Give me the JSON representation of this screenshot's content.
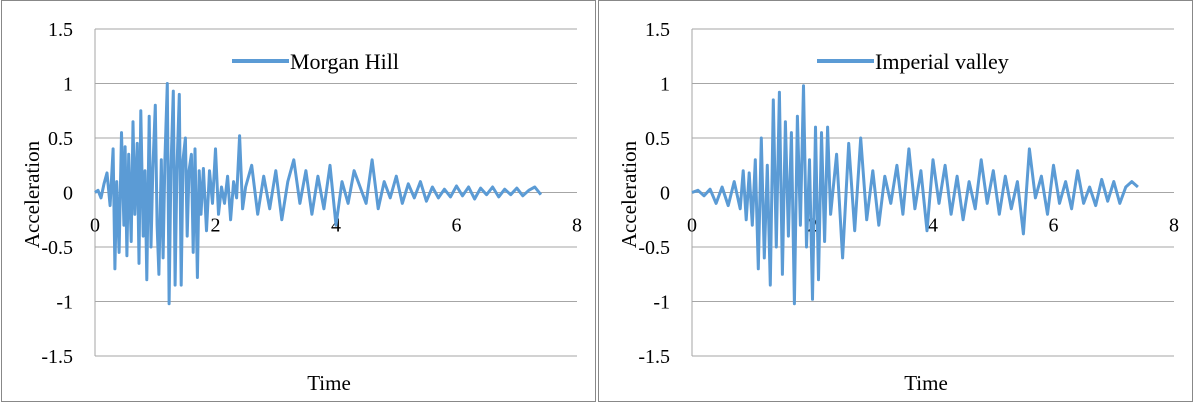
{
  "chart_data": [
    {
      "type": "line",
      "xlabel": "Time",
      "ylabel": "Acceleration",
      "xlim": [
        0,
        8
      ],
      "ylim": [
        -1.5,
        1.5
      ],
      "xticks": [
        "0",
        "2",
        "4",
        "6",
        "8"
      ],
      "yticks": [
        "1.5",
        "1",
        "0.5",
        "0",
        "-0.5",
        "-1",
        "-1.5"
      ],
      "grid": "horizontal",
      "legend": "top-center",
      "series": [
        {
          "name": "Morgan Hill",
          "color": "#5b9bd5",
          "x": [
            0,
            0.05,
            0.1,
            0.15,
            0.2,
            0.25,
            0.3,
            0.33,
            0.36,
            0.4,
            0.44,
            0.48,
            0.5,
            0.53,
            0.56,
            0.6,
            0.63,
            0.66,
            0.7,
            0.73,
            0.76,
            0.8,
            0.83,
            0.86,
            0.9,
            0.93,
            0.96,
            1.0,
            1.03,
            1.06,
            1.1,
            1.13,
            1.16,
            1.2,
            1.23,
            1.26,
            1.3,
            1.33,
            1.36,
            1.4,
            1.43,
            1.46,
            1.5,
            1.53,
            1.56,
            1.6,
            1.63,
            1.66,
            1.7,
            1.73,
            1.76,
            1.8,
            1.85,
            1.9,
            1.95,
            2.0,
            2.05,
            2.1,
            2.15,
            2.2,
            2.25,
            2.3,
            2.35,
            2.4,
            2.45,
            2.5,
            2.6,
            2.7,
            2.8,
            2.9,
            3.0,
            3.1,
            3.2,
            3.3,
            3.4,
            3.5,
            3.6,
            3.7,
            3.8,
            3.9,
            4.0,
            4.1,
            4.2,
            4.3,
            4.4,
            4.5,
            4.6,
            4.7,
            4.8,
            4.9,
            5.0,
            5.1,
            5.2,
            5.3,
            5.4,
            5.5,
            5.6,
            5.7,
            5.8,
            5.9,
            6.0,
            6.1,
            6.2,
            6.3,
            6.4,
            6.5,
            6.6,
            6.7,
            6.8,
            6.9,
            7.0,
            7.1,
            7.2,
            7.3,
            7.4
          ],
          "values": [
            0,
            0.02,
            -0.05,
            0.08,
            0.18,
            -0.12,
            0.4,
            -0.7,
            0.1,
            -0.55,
            0.55,
            -0.3,
            0.42,
            -0.58,
            0.35,
            -0.45,
            0.65,
            -0.2,
            0.45,
            -0.65,
            0.75,
            -0.4,
            0.2,
            -0.8,
            0.7,
            -0.5,
            0.2,
            0.8,
            -0.3,
            -0.75,
            0.3,
            -0.6,
            0.3,
            1.0,
            -1.02,
            0.2,
            0.93,
            -0.85,
            0.2,
            0.9,
            -0.85,
            0.3,
            0.5,
            -0.4,
            0.2,
            0.35,
            -0.55,
            0.4,
            -0.78,
            0.2,
            -0.2,
            0.22,
            -0.35,
            0.2,
            -0.1,
            0.4,
            -0.2,
            0.05,
            -0.1,
            0.15,
            -0.25,
            0.1,
            -0.05,
            0.52,
            -0.15,
            0.05,
            0.25,
            -0.2,
            0.15,
            -0.15,
            0.2,
            -0.25,
            0.1,
            0.3,
            -0.1,
            0.2,
            -0.2,
            0.15,
            -0.15,
            0.25,
            -0.3,
            0.1,
            -0.1,
            0.2,
            0.05,
            -0.1,
            0.3,
            -0.15,
            0.1,
            -0.05,
            0.15,
            -0.1,
            0.08,
            -0.05,
            0.1,
            -0.08,
            0.05,
            -0.05,
            0.03,
            -0.04,
            0.06,
            -0.03,
            0.05,
            -0.06,
            0.04,
            -0.02,
            0.05,
            -0.04,
            0.03,
            -0.02,
            0.04,
            -0.03,
            0.02,
            0.05,
            -0.02
          ]
        }
      ]
    },
    {
      "type": "line",
      "xlabel": "Time",
      "ylabel": "Acceleration",
      "xlim": [
        0,
        8
      ],
      "ylim": [
        -1.5,
        1.5
      ],
      "xticks": [
        "0",
        "2",
        "4",
        "6",
        "8"
      ],
      "yticks": [
        "1.5",
        "1",
        "0.5",
        "0",
        "-0.5",
        "-1",
        "-1.5"
      ],
      "grid": "horizontal",
      "legend": "top-center",
      "series": [
        {
          "name": "Imperial valley",
          "color": "#5b9bd5",
          "x": [
            0,
            0.1,
            0.2,
            0.3,
            0.4,
            0.5,
            0.6,
            0.7,
            0.8,
            0.85,
            0.9,
            0.95,
            1.0,
            1.05,
            1.1,
            1.15,
            1.2,
            1.25,
            1.3,
            1.35,
            1.4,
            1.45,
            1.5,
            1.55,
            1.6,
            1.65,
            1.7,
            1.75,
            1.8,
            1.85,
            1.9,
            1.95,
            2.0,
            2.05,
            2.1,
            2.15,
            2.2,
            2.25,
            2.3,
            2.4,
            2.5,
            2.6,
            2.7,
            2.8,
            2.9,
            3.0,
            3.1,
            3.2,
            3.3,
            3.4,
            3.5,
            3.6,
            3.7,
            3.8,
            3.9,
            4.0,
            4.1,
            4.2,
            4.3,
            4.4,
            4.5,
            4.6,
            4.7,
            4.8,
            4.9,
            5.0,
            5.1,
            5.2,
            5.3,
            5.4,
            5.5,
            5.6,
            5.7,
            5.8,
            5.9,
            6.0,
            6.1,
            6.2,
            6.3,
            6.4,
            6.5,
            6.6,
            6.7,
            6.8,
            6.9,
            7.0,
            7.1,
            7.2,
            7.3,
            7.4
          ],
          "values": [
            0,
            0.02,
            -0.03,
            0.03,
            -0.1,
            0.05,
            -0.12,
            0.1,
            -0.15,
            0.2,
            -0.25,
            0.18,
            -0.3,
            0.3,
            -0.7,
            0.5,
            -0.6,
            0.25,
            -0.85,
            0.85,
            -0.5,
            0.92,
            -0.75,
            0.65,
            -0.4,
            0.55,
            -1.02,
            0.7,
            -0.3,
            0.98,
            -0.5,
            0.3,
            -0.98,
            0.6,
            -0.8,
            0.55,
            -0.45,
            0.6,
            -0.2,
            0.35,
            -0.6,
            0.45,
            -0.35,
            0.5,
            -0.25,
            0.2,
            -0.3,
            0.15,
            -0.1,
            0.25,
            -0.2,
            0.4,
            -0.15,
            0.2,
            -0.35,
            0.3,
            -0.1,
            0.25,
            -0.2,
            0.15,
            -0.25,
            0.1,
            -0.15,
            0.3,
            -0.1,
            0.2,
            -0.2,
            0.15,
            -0.15,
            0.1,
            -0.38,
            0.4,
            -0.05,
            0.15,
            -0.2,
            0.25,
            -0.1,
            0.1,
            -0.15,
            0.2,
            -0.1,
            0.05,
            -0.12,
            0.12,
            -0.08,
            0.1,
            -0.1,
            0.05,
            0.1,
            0.05
          ]
        }
      ]
    }
  ]
}
